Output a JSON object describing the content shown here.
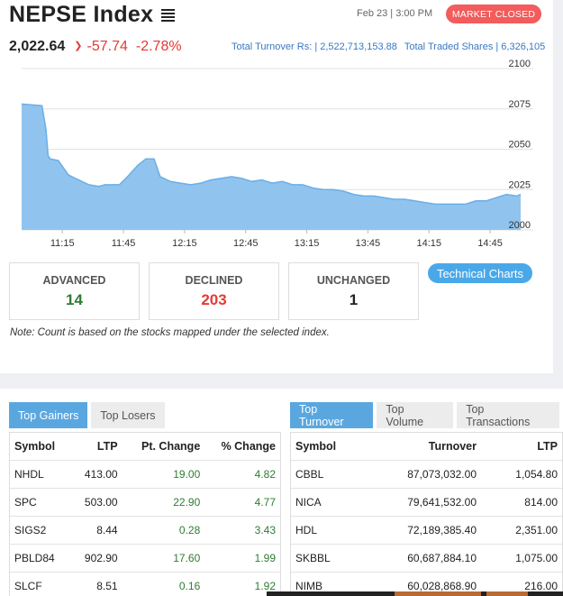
{
  "header": {
    "title": "NEPSE Index",
    "date": "Feb 23 | 3:00 PM",
    "market_status": "MARKET CLOSED"
  },
  "index": {
    "value": "2,022.64",
    "change": "-57.74",
    "change_pct": "-2.78%"
  },
  "turnover": {
    "total_turnover": "Total Turnover Rs: | 2,522,713,153.88",
    "total_traded_shares": "Total Traded Shares | 6,326,105"
  },
  "chart_data": {
    "type": "area",
    "x_ticks": [
      "11:15",
      "11:45",
      "12:15",
      "12:45",
      "13:15",
      "13:45",
      "14:15",
      "14:45"
    ],
    "y_ticks": [
      "2100",
      "2075",
      "2050",
      "2025",
      "2000"
    ],
    "ylim": [
      2000,
      2100
    ],
    "xlim": [
      "10:55",
      "15:00"
    ],
    "grid": true,
    "color": "#90c4ee",
    "points": [
      [
        "10:55",
        2078
      ],
      [
        "11:05",
        2077
      ],
      [
        "11:07",
        2062
      ],
      [
        "11:08",
        2046
      ],
      [
        "11:09",
        2044
      ],
      [
        "11:13",
        2043
      ],
      [
        "11:18",
        2034
      ],
      [
        "11:23",
        2031
      ],
      [
        "11:28",
        2028
      ],
      [
        "11:33",
        2027
      ],
      [
        "11:36",
        2028
      ],
      [
        "11:43",
        2028
      ],
      [
        "11:47",
        2033
      ],
      [
        "11:52",
        2040
      ],
      [
        "11:56",
        2044
      ],
      [
        "12:00",
        2044
      ],
      [
        "12:03",
        2033
      ],
      [
        "12:08",
        2030
      ],
      [
        "12:13",
        2029
      ],
      [
        "12:18",
        2028
      ],
      [
        "12:23",
        2029
      ],
      [
        "12:28",
        2031
      ],
      [
        "12:33",
        2032
      ],
      [
        "12:38",
        2033
      ],
      [
        "12:43",
        2032
      ],
      [
        "12:48",
        2030
      ],
      [
        "12:53",
        2031
      ],
      [
        "12:58",
        2029
      ],
      [
        "13:03",
        2030
      ],
      [
        "13:08",
        2028
      ],
      [
        "13:13",
        2028
      ],
      [
        "13:18",
        2026
      ],
      [
        "13:23",
        2025
      ],
      [
        "13:28",
        2025
      ],
      [
        "13:33",
        2024
      ],
      [
        "13:38",
        2022
      ],
      [
        "13:43",
        2021
      ],
      [
        "13:48",
        2021
      ],
      [
        "13:53",
        2020
      ],
      [
        "13:58",
        2019
      ],
      [
        "14:03",
        2019
      ],
      [
        "14:08",
        2018
      ],
      [
        "14:13",
        2017
      ],
      [
        "14:18",
        2016
      ],
      [
        "14:23",
        2016
      ],
      [
        "14:28",
        2016
      ],
      [
        "14:33",
        2016
      ],
      [
        "14:38",
        2018
      ],
      [
        "14:43",
        2018
      ],
      [
        "14:48",
        2020
      ],
      [
        "14:53",
        2022
      ],
      [
        "14:58",
        2021
      ],
      [
        "15:00",
        2022
      ]
    ]
  },
  "stats": {
    "advanced": {
      "label": "ADVANCED",
      "value": "14",
      "color": "#2e7d32"
    },
    "declined": {
      "label": "DECLINED",
      "value": "203",
      "color": "#e53935"
    },
    "unchanged": {
      "label": "UNCHANGED",
      "value": "1",
      "color": "#222222"
    }
  },
  "technical_charts_label": "Technical Charts",
  "note": "Note: Count is based on the stocks mapped under the selected index.",
  "gainers_panel": {
    "tabs": [
      "Top Gainers",
      "Top Losers"
    ],
    "active_tab": 0,
    "columns": [
      "Symbol",
      "LTP",
      "Pt. Change",
      "% Change"
    ],
    "rows": [
      [
        "NHDL",
        "413.00",
        "19.00",
        "4.82"
      ],
      [
        "SPC",
        "503.00",
        "22.90",
        "4.77"
      ],
      [
        "SIGS2",
        "8.44",
        "0.28",
        "3.43"
      ],
      [
        "PBLD84",
        "902.90",
        "17.60",
        "1.99"
      ],
      [
        "SLCF",
        "8.51",
        "0.16",
        "1.92"
      ]
    ]
  },
  "turnover_panel": {
    "tabs": [
      "Top Turnover",
      "Top Volume",
      "Top Transactions"
    ],
    "active_tab": 0,
    "columns": [
      "Symbol",
      "Turnover",
      "LTP"
    ],
    "rows": [
      [
        "CBBL",
        "87,073,032.00",
        "1,054.80"
      ],
      [
        "NICA",
        "79,641,532.00",
        "814.00"
      ],
      [
        "HDL",
        "72,189,385.40",
        "2,351.00"
      ],
      [
        "SKBBL",
        "60,687,884.10",
        "1,075.00"
      ],
      [
        "NIMB",
        "60,028,868.90",
        "216.00"
      ]
    ]
  }
}
